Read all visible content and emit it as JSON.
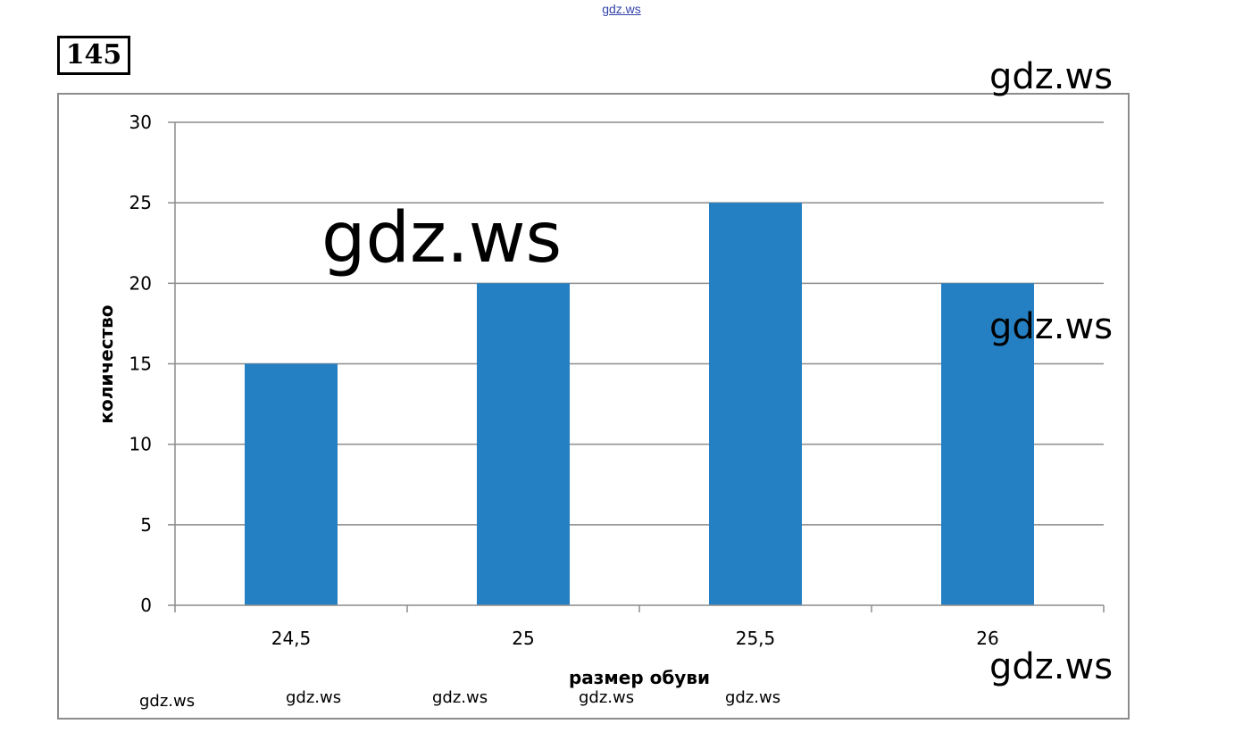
{
  "watermarks": {
    "top": "gdz.ws",
    "right_top": "gdz.ws",
    "center": "gdz.ws",
    "right_mid": "gdz.ws",
    "right_bottom": "gdz.ws",
    "bottom": [
      "gdz.ws",
      "gdz.ws",
      "gdz.ws",
      "gdz.ws",
      "gdz.ws"
    ]
  },
  "task_number": "145",
  "colors": {
    "bar": "#2580c3",
    "grid": "#8c8c8c",
    "axis": "#8c8c8c",
    "text": "#000000"
  },
  "chart_data": {
    "type": "bar",
    "categories": [
      "24,5",
      "25",
      "25,5",
      "26"
    ],
    "values": [
      15,
      20,
      25,
      20
    ],
    "title": "",
    "xlabel": "размер обуви",
    "ylabel": "количество",
    "ylim": [
      0,
      30
    ],
    "yticks": [
      0,
      5,
      10,
      15,
      20,
      25,
      30
    ],
    "grid": true,
    "legend": "none"
  }
}
